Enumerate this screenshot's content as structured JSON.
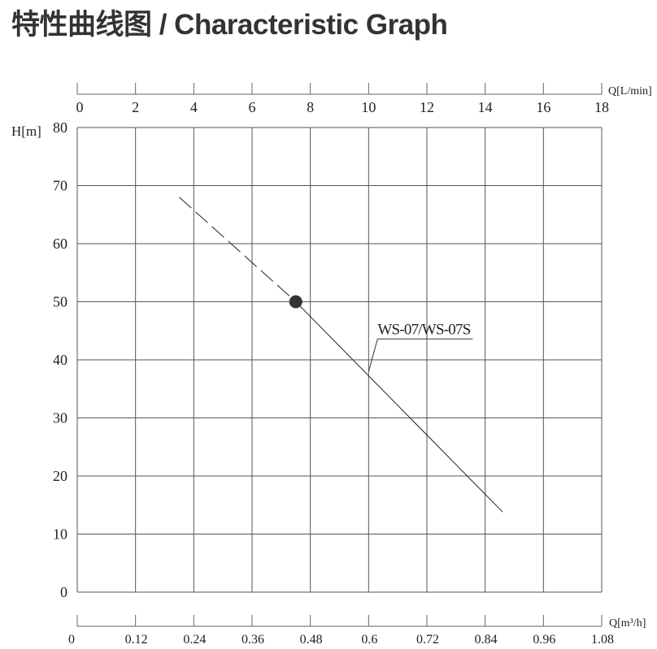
{
  "chart_data": {
    "type": "line",
    "title": "特性曲线图 / Characteristic Graph",
    "xlabel_top": "Q[L/min]",
    "xlabel_bottom": "Q[m³/h]",
    "ylabel": "H[m]",
    "xlim": [
      0,
      18
    ],
    "ylim": [
      0,
      80
    ],
    "x_ticks_top": [
      "0",
      "2",
      "4",
      "6",
      "8",
      "10",
      "12",
      "14",
      "16",
      "18"
    ],
    "x_ticks_bottom": [
      "0",
      "0.12",
      "0.24",
      "0.36",
      "0.48",
      "0.6",
      "0.72",
      "0.84",
      "0.96",
      "1.08"
    ],
    "y_ticks": [
      "0",
      "10",
      "20",
      "30",
      "40",
      "50",
      "60",
      "70",
      "80"
    ],
    "grid": true,
    "series": [
      {
        "name": "WS-07/WS-07S",
        "color": "#222222",
        "dashed_segment": [
          {
            "x": 3.5,
            "y": 68
          },
          {
            "x": 7.5,
            "y": 50
          }
        ],
        "solid_segment": [
          {
            "x": 7.5,
            "y": 50
          },
          {
            "x": 14.6,
            "y": 13.8
          }
        ]
      }
    ],
    "operating_point": {
      "x": 7.5,
      "y": 50,
      "color": "#333333"
    },
    "annotation": {
      "text": "WS-07/WS-07S",
      "x": 10,
      "y": 38
    }
  }
}
